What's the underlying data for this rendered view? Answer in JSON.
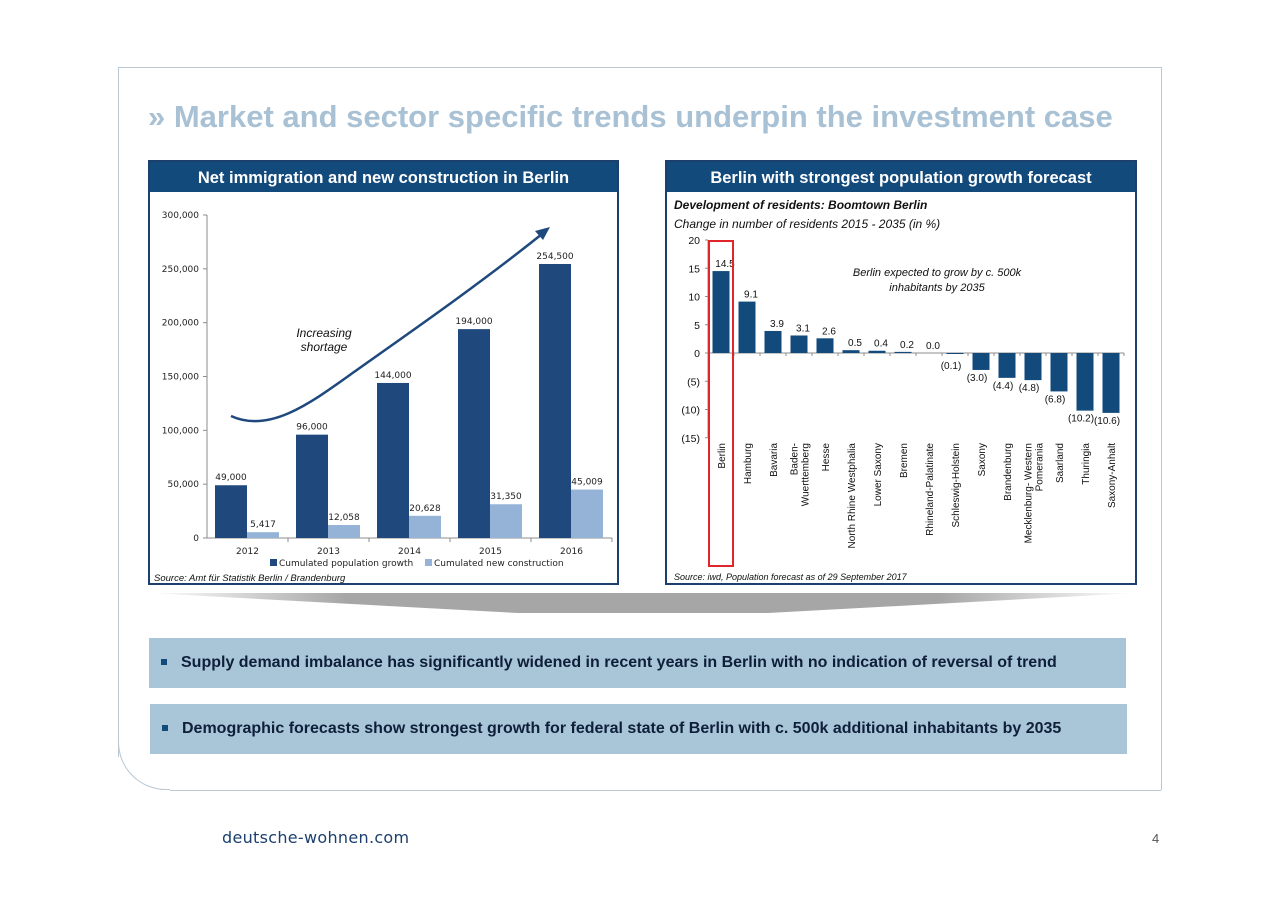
{
  "title": "» Market and sector specific trends underpin the investment case",
  "chart_data": [
    {
      "type": "bar",
      "title": "Net immigration and new construction in Berlin",
      "categories": [
        "2012",
        "2013",
        "2014",
        "2015",
        "2016"
      ],
      "series": [
        {
          "name": "Cumulated population growth",
          "values": [
            49000,
            96000,
            144000,
            194000,
            254500
          ],
          "labels": [
            "49,000",
            "96,000",
            "144,000",
            "194,000",
            "254,500"
          ],
          "color": "#1f497d"
        },
        {
          "name": "Cumulated new construction",
          "values": [
            5417,
            12058,
            20628,
            31350,
            45009
          ],
          "labels": [
            "5,417",
            "12,058",
            "20,628",
            "31,350",
            "45,009"
          ],
          "color": "#95b3d7"
        }
      ],
      "ylim": [
        0,
        300000
      ],
      "yticks": [
        0,
        50000,
        100000,
        150000,
        200000,
        250000,
        300000
      ],
      "ytick_labels": [
        "0",
        "50,000",
        "100,000",
        "150,000",
        "200,000",
        "250,000",
        "300,000"
      ],
      "annotation": "Increasing shortage",
      "source": "Source: Amt für Statistik Berlin / Brandenburg",
      "legend_position": "bottom"
    },
    {
      "type": "bar",
      "title": "Berlin with strongest population growth forecast",
      "subtitle": "Development of residents: Boomtown Berlin",
      "ylabel": "Change in number of residents 2015 - 2035 (in %)",
      "categories": [
        "Berlin",
        "Hamburg",
        "Bavaria",
        "Baden-Wuerttemberg",
        "Hesse",
        "North Rhine Westphalia",
        "Lower Saxony",
        "Bremen",
        "Rhineland-Palatinate",
        "Schleswig-Holstein",
        "Saxony",
        "Brandenburg",
        "Mecklenburg-Western Pomerania",
        "Saarland",
        "Thuringia",
        "Saxony-Anhalt"
      ],
      "category_lines": [
        [
          "Berlin"
        ],
        [
          "Hamburg"
        ],
        [
          "Bavaria"
        ],
        [
          "Baden-",
          "Wuerttemberg"
        ],
        [
          "Hesse"
        ],
        [
          "North Rhine Westphalia"
        ],
        [
          "Lower Saxony"
        ],
        [
          "Bremen"
        ],
        [
          "Rhineland-Palatinate"
        ],
        [
          "Schleswig-Holstein"
        ],
        [
          "Saxony"
        ],
        [
          "Brandenburg"
        ],
        [
          "Mecklenburg- Western",
          "Pomerania"
        ],
        [
          "Saarland"
        ],
        [
          "Thuringia"
        ],
        [
          "Saxony-Anhalt"
        ]
      ],
      "values": [
        14.5,
        9.1,
        3.9,
        3.1,
        2.6,
        0.5,
        0.4,
        0.2,
        0.0,
        -0.1,
        -3.0,
        -4.4,
        -4.8,
        -6.8,
        -10.2,
        -10.6
      ],
      "value_labels": [
        "14.5",
        "9.1",
        "3.9",
        "3.1",
        "2.6",
        "0.5",
        "0.4",
        "0.2",
        "0.0",
        "(0.1)",
        "(3.0)",
        "(4.4)",
        "(4.8)",
        "(6.8)",
        "(10.2)",
        "(10.6)"
      ],
      "ylim": [
        -15,
        20
      ],
      "yticks": [
        20,
        15,
        10,
        5,
        0,
        -5,
        -10,
        -15
      ],
      "ytick_labels": [
        "20",
        "15",
        "10",
        "5",
        "0",
        "(5)",
        "(10)",
        "(15)"
      ],
      "annotation": "Berlin expected to grow by c. 500k inhabitants by 2035",
      "highlight": "Berlin",
      "highlight_color": "#e0252b",
      "bar_color": "#134a7c",
      "source": "Source: iwd, Population forecast as of 29 September 2017"
    }
  ],
  "bullets": [
    "Supply demand imbalance has significantly widened in recent years in Berlin with no indication of reversal of trend",
    "Demographic forecasts show strongest growth for federal state of Berlin with c. 500k additional inhabitants by 2035"
  ],
  "footer": {
    "logo": "deutsche-wohnen.com",
    "page": "4"
  }
}
